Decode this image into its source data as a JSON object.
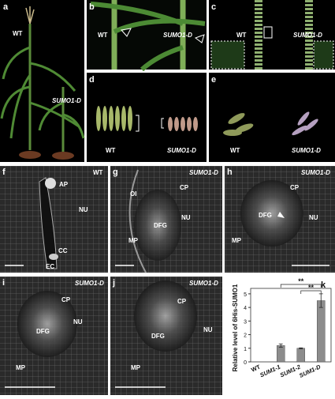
{
  "panels": [
    {
      "label": "a",
      "texts": [
        "WT",
        "SUMO1-D"
      ]
    },
    {
      "label": "b",
      "texts": [
        "WT",
        "SUMO1-D"
      ]
    },
    {
      "label": "c",
      "texts": [
        "WT",
        "SUMO1-D"
      ]
    },
    {
      "label": "d",
      "texts": [
        "WT",
        "SUMO1-D"
      ]
    },
    {
      "label": "e",
      "texts": [
        "WT",
        "SUMO1-D"
      ]
    },
    {
      "label": "f",
      "texts": [
        "WT",
        "AP",
        "NU",
        "CC",
        "EC"
      ]
    },
    {
      "label": "g",
      "texts": [
        "SUMO1-D",
        "OI",
        "CP",
        "NU",
        "DFG",
        "MP"
      ]
    },
    {
      "label": "h",
      "texts": [
        "SUMO1-D",
        "CP",
        "DFG",
        "NU",
        "MP"
      ]
    },
    {
      "label": "i",
      "texts": [
        "SUMO1-D",
        "CP",
        "NU",
        "DFG",
        "MP"
      ]
    },
    {
      "label": "j",
      "texts": [
        "SUMO1-D",
        "CP",
        "DFG",
        "NU",
        "MP"
      ]
    },
    {
      "label": "k",
      "texts": []
    }
  ],
  "chart_data": {
    "type": "bar",
    "y_label": "Relative level of 6His-SUMO1",
    "categories": [
      "WT",
      "SUM1-1",
      "SUM1-2",
      "SUM1-D"
    ],
    "values": [
      0,
      1.2,
      1.0,
      4.5
    ],
    "errors": [
      0,
      0.12,
      0.03,
      0.5
    ],
    "color": "#8c8c8c",
    "ylim": [
      0,
      5.4
    ],
    "yticks": [
      0,
      1,
      2,
      3,
      4,
      5
    ],
    "annotations": [
      "**",
      "**"
    ]
  }
}
